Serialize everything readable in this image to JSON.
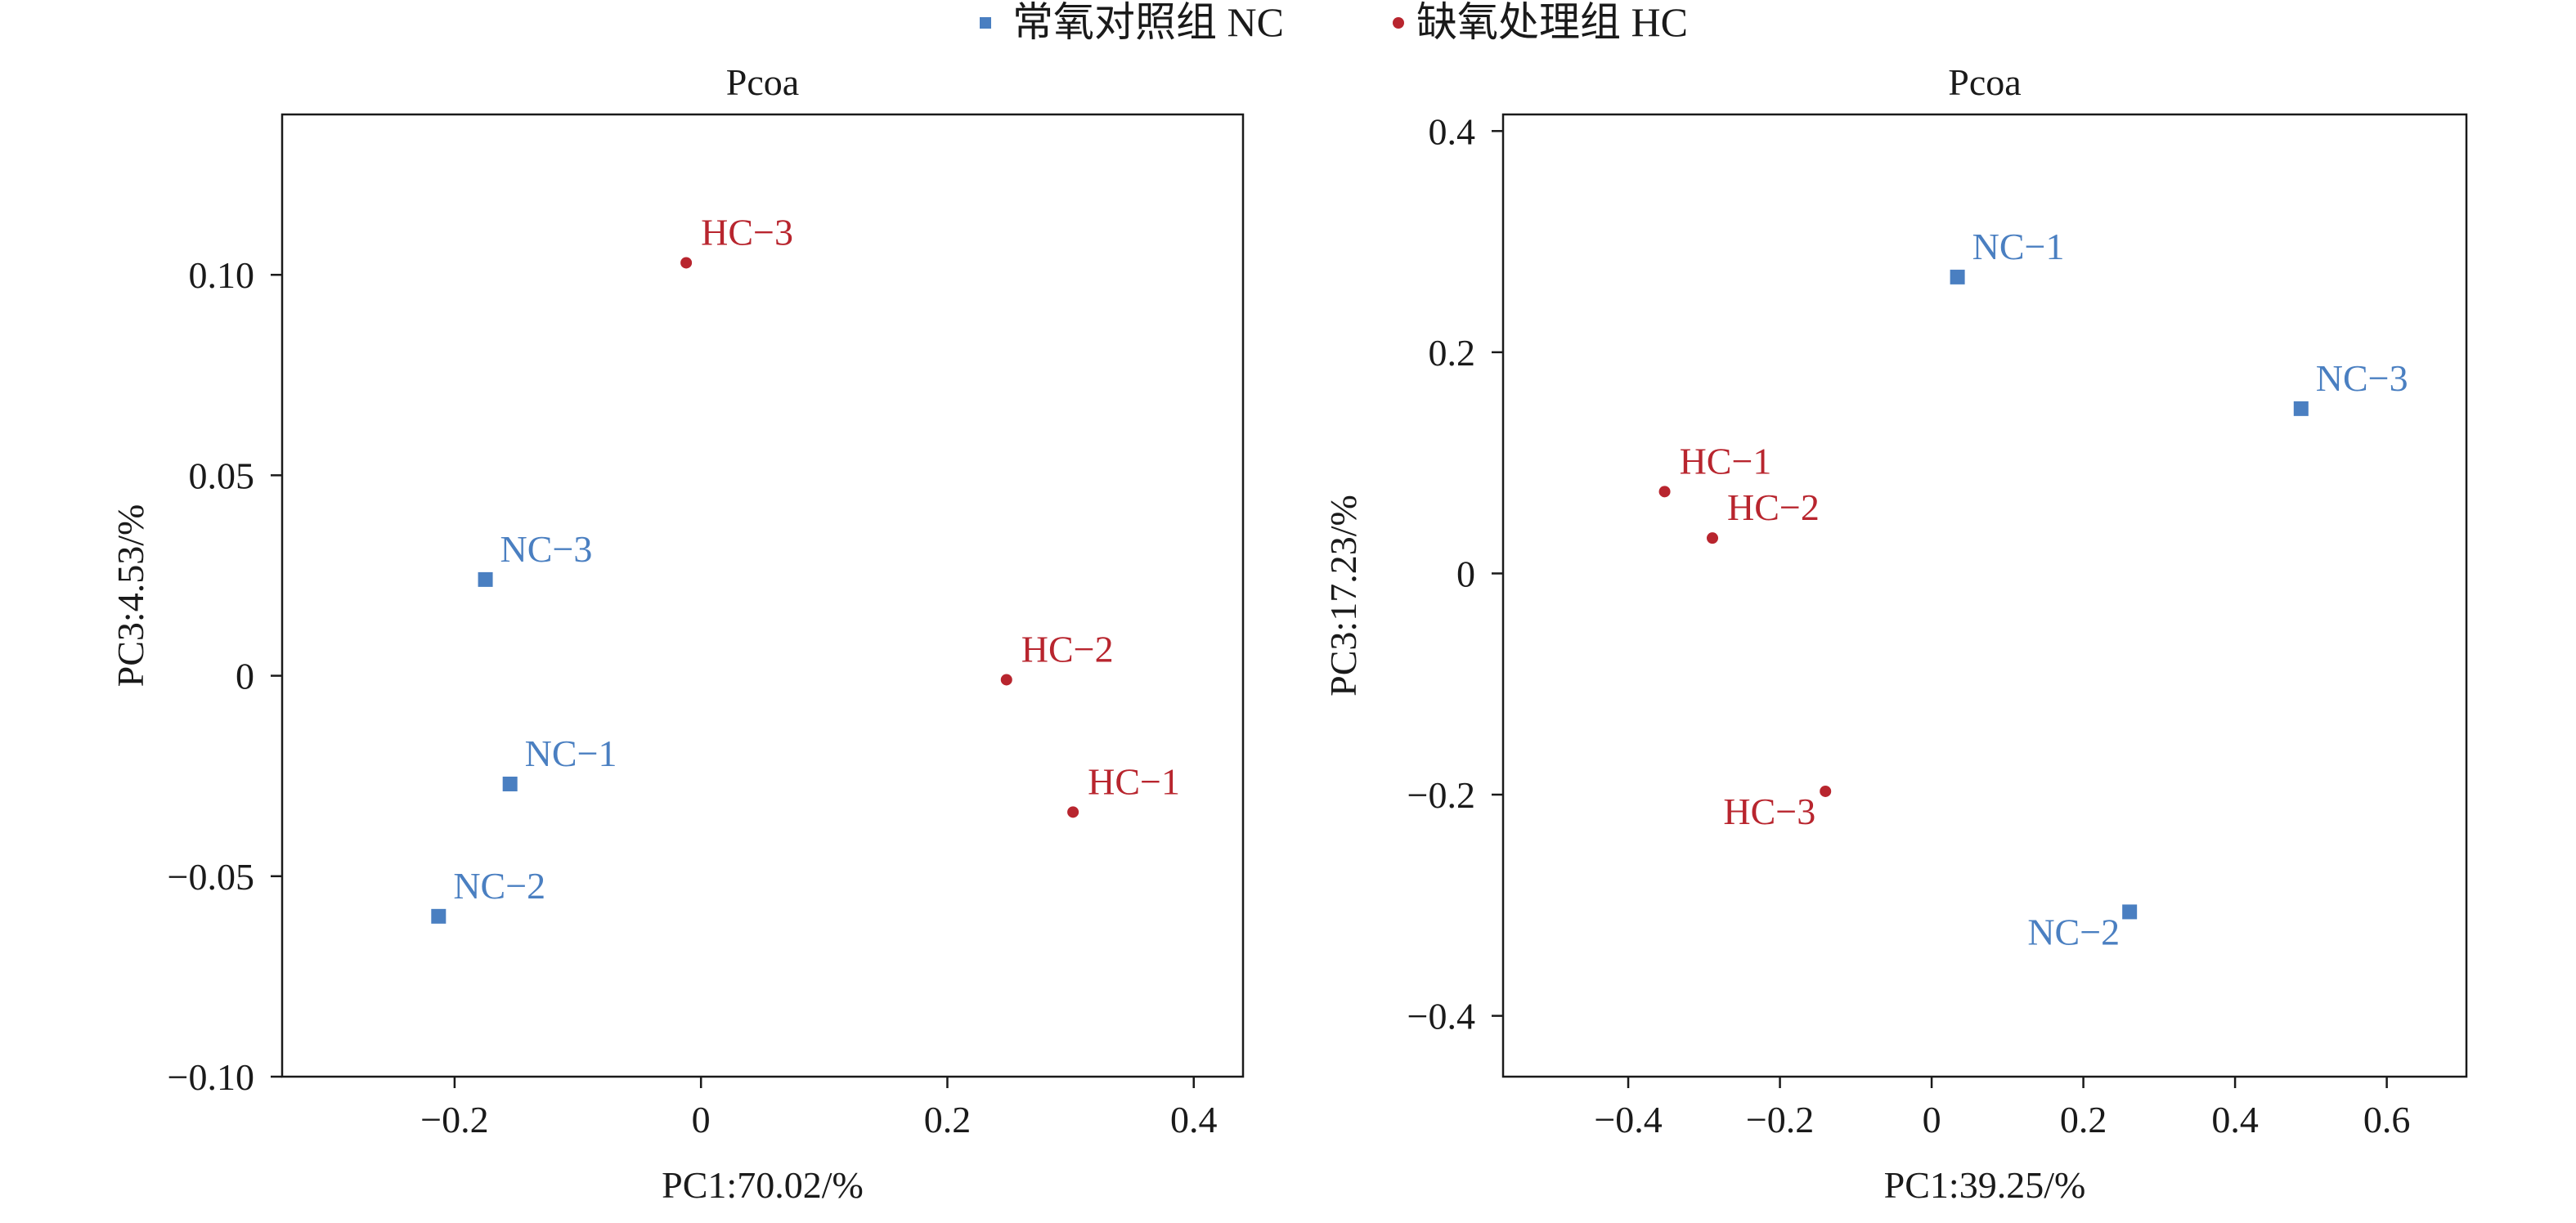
{
  "legend": [
    {
      "label": "常氧对照组 NC",
      "color": "#4a7fc1",
      "marker": "square"
    },
    {
      "label": "缺氧处理组 HC",
      "color": "#b8252e",
      "marker": "circle"
    }
  ],
  "chart_data": [
    {
      "type": "scatter",
      "title": "Pcoa",
      "xlabel": "PC1:70.02/%",
      "ylabel": "PC3:4.53/%",
      "xlim": [
        -0.34,
        0.44
      ],
      "ylim": [
        -0.1,
        0.14
      ],
      "xticks": [
        -0.2,
        0,
        0.2,
        0.4
      ],
      "xtick_labels": [
        "−0.2",
        "0",
        "0.2",
        "0.4"
      ],
      "yticks": [
        -0.1,
        -0.05,
        0,
        0.05,
        0.1
      ],
      "ytick_labels": [
        "−0.10",
        "−0.05",
        "0",
        "0.05",
        "0.10"
      ],
      "grid": false,
      "series": [
        {
          "name": "常氧对照组 NC",
          "color": "#4a7fc1",
          "marker": "square",
          "points": [
            {
              "label": "NC−1",
              "x": -0.155,
              "y": -0.027,
              "anchor": "right"
            },
            {
              "label": "NC−2",
              "x": -0.213,
              "y": -0.06,
              "anchor": "right"
            },
            {
              "label": "NC−3",
              "x": -0.175,
              "y": 0.024,
              "anchor": "right"
            }
          ]
        },
        {
          "name": "缺氧处理组 HC",
          "color": "#b8252e",
          "marker": "circle",
          "points": [
            {
              "label": "HC−1",
              "x": 0.302,
              "y": -0.034,
              "anchor": "right"
            },
            {
              "label": "HC−2",
              "x": 0.248,
              "y": -0.001,
              "anchor": "right"
            },
            {
              "label": "HC−3",
              "x": -0.012,
              "y": 0.103,
              "anchor": "right"
            }
          ]
        }
      ]
    },
    {
      "type": "scatter",
      "title": "Pcoa",
      "xlabel": "PC1:39.25/%",
      "ylabel": "PC3:17.23/%",
      "xlim": [
        -0.565,
        0.705
      ],
      "ylim": [
        -0.455,
        0.415
      ],
      "xticks": [
        -0.4,
        -0.2,
        0,
        0.2,
        0.4,
        0.6
      ],
      "xtick_labels": [
        "−0.4",
        "−0.2",
        "0",
        "0.2",
        "0.4",
        "0.6"
      ],
      "yticks": [
        -0.4,
        -0.2,
        0,
        0.2,
        0.4
      ],
      "ytick_labels": [
        "−0.4",
        "−0.2",
        "0",
        "0.2",
        "0.4"
      ],
      "grid": false,
      "series": [
        {
          "name": "常氧对照组 NC",
          "color": "#4a7fc1",
          "marker": "square",
          "points": [
            {
              "label": "NC−1",
              "x": 0.034,
              "y": 0.268,
              "anchor": "right"
            },
            {
              "label": "NC−2",
              "x": 0.261,
              "y": -0.306,
              "anchor": "left"
            },
            {
              "label": "NC−3",
              "x": 0.487,
              "y": 0.149,
              "anchor": "right"
            }
          ]
        },
        {
          "name": "缺氧处理组 HC",
          "color": "#b8252e",
          "marker": "circle",
          "points": [
            {
              "label": "HC−1",
              "x": -0.352,
              "y": 0.074,
              "anchor": "right"
            },
            {
              "label": "HC−2",
              "x": -0.289,
              "y": 0.032,
              "anchor": "right"
            },
            {
              "label": "HC−3",
              "x": -0.14,
              "y": -0.197,
              "anchor": "left"
            }
          ]
        }
      ]
    }
  ]
}
